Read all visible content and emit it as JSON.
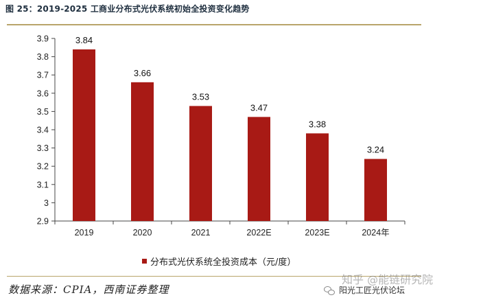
{
  "figure": {
    "title": "图 25：2019-2025 工商业分布式光伏系统初始全投资变化趋势",
    "source": "数据来源：CPIA，西南证券整理",
    "watermark_zhihu": "知乎 @能链研究院",
    "watermark_account": "阳光工匠光伏论坛"
  },
  "colors": {
    "bar": "#a81a15",
    "rule": "#b8a46a"
  },
  "chart_data": {
    "type": "bar",
    "title": "",
    "xlabel": "",
    "ylabel": "",
    "categories": [
      "2019",
      "2020",
      "2021",
      "2022E",
      "2023E",
      "2024年"
    ],
    "series": [
      {
        "name": "分布式光伏系统全投资成本（元/度）",
        "values": [
          3.84,
          3.66,
          3.53,
          3.47,
          3.38,
          3.24
        ]
      }
    ],
    "data_labels": [
      "3.84",
      "3.66",
      "3.53",
      "3.47",
      "3.38",
      "3.24"
    ],
    "ylim": [
      2.9,
      3.9
    ],
    "yticks": [
      "2.9",
      "3",
      "3.1",
      "3.2",
      "3.3",
      "3.4",
      "3.5",
      "3.6",
      "3.7",
      "3.8",
      "3.9"
    ],
    "grid": false,
    "legend_position": "bottom"
  }
}
